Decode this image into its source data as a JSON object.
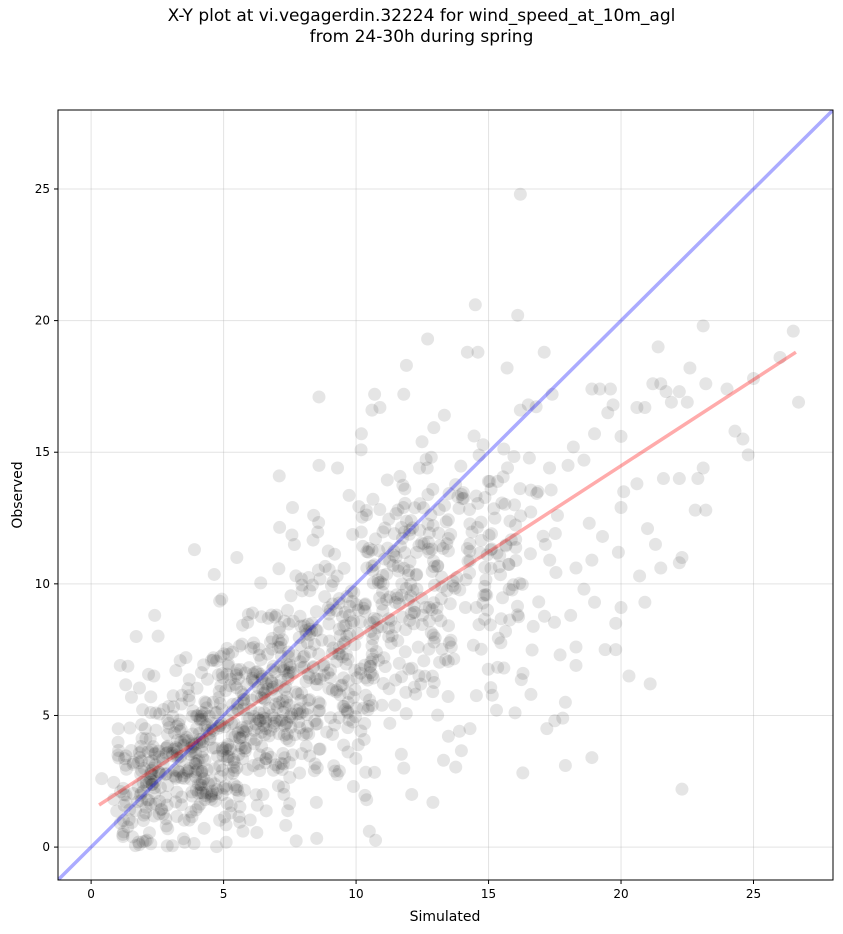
{
  "chart_data": {
    "type": "scatter",
    "title_line1": "X-Y plot at vi.vegagerdin.32224 for wind_speed_at_10m_agl",
    "title_line2": "from 24-30h during spring",
    "xlabel": "Simulated",
    "ylabel": "Observed",
    "xlim": [
      -1.25,
      28.0
    ],
    "ylim": [
      -1.25,
      28.0
    ],
    "xticks": [
      0,
      5,
      10,
      15,
      20,
      25
    ],
    "yticks": [
      0,
      5,
      10,
      15,
      20,
      25
    ],
    "grid": true,
    "point_color": "#000000",
    "identity_line_color": "#0000ff",
    "fit_line_color": "#ff0000",
    "fit_line": {
      "x": [
        0.3,
        26.6
      ],
      "y": [
        1.6,
        18.8
      ]
    },
    "outlier_points": [
      {
        "x": 0.4,
        "y": 2.6
      },
      {
        "x": 1.1,
        "y": 6.9
      },
      {
        "x": 1.7,
        "y": 8.0
      },
      {
        "x": 2.4,
        "y": 8.8
      },
      {
        "x": 3.9,
        "y": 11.3
      },
      {
        "x": 5.5,
        "y": 11.0
      },
      {
        "x": 7.1,
        "y": 14.1
      },
      {
        "x": 7.6,
        "y": 12.9
      },
      {
        "x": 8.4,
        "y": 12.6
      },
      {
        "x": 8.6,
        "y": 17.1
      },
      {
        "x": 8.6,
        "y": 14.5
      },
      {
        "x": 9.3,
        "y": 14.4
      },
      {
        "x": 10.2,
        "y": 15.7
      },
      {
        "x": 10.6,
        "y": 16.6
      },
      {
        "x": 10.9,
        "y": 16.7
      },
      {
        "x": 10.7,
        "y": 17.2
      },
      {
        "x": 11.8,
        "y": 17.2
      },
      {
        "x": 11.9,
        "y": 18.3
      },
      {
        "x": 12.7,
        "y": 19.3
      },
      {
        "x": 14.5,
        "y": 20.6
      },
      {
        "x": 14.2,
        "y": 18.8
      },
      {
        "x": 14.6,
        "y": 18.8
      },
      {
        "x": 15.7,
        "y": 18.2
      },
      {
        "x": 16.1,
        "y": 20.2
      },
      {
        "x": 16.2,
        "y": 24.8
      },
      {
        "x": 17.1,
        "y": 18.8
      },
      {
        "x": 17.4,
        "y": 17.2
      },
      {
        "x": 18.2,
        "y": 15.2
      },
      {
        "x": 18.6,
        "y": 14.7
      },
      {
        "x": 19.0,
        "y": 15.7
      },
      {
        "x": 19.5,
        "y": 16.5
      },
      {
        "x": 18.9,
        "y": 17.4
      },
      {
        "x": 19.2,
        "y": 17.4
      },
      {
        "x": 19.6,
        "y": 17.4
      },
      {
        "x": 19.7,
        "y": 16.8
      },
      {
        "x": 20.0,
        "y": 15.6
      },
      {
        "x": 20.6,
        "y": 16.7
      },
      {
        "x": 20.9,
        "y": 16.7
      },
      {
        "x": 21.2,
        "y": 17.6
      },
      {
        "x": 21.4,
        "y": 19.0
      },
      {
        "x": 21.5,
        "y": 17.6
      },
      {
        "x": 21.9,
        "y": 16.9
      },
      {
        "x": 21.7,
        "y": 17.3
      },
      {
        "x": 22.2,
        "y": 17.3
      },
      {
        "x": 22.5,
        "y": 16.9
      },
      {
        "x": 22.6,
        "y": 18.2
      },
      {
        "x": 23.1,
        "y": 19.8
      },
      {
        "x": 23.2,
        "y": 17.6
      },
      {
        "x": 24.0,
        "y": 17.4
      },
      {
        "x": 25.0,
        "y": 17.8
      },
      {
        "x": 26.0,
        "y": 18.6
      },
      {
        "x": 26.5,
        "y": 19.6
      },
      {
        "x": 26.7,
        "y": 16.9
      },
      {
        "x": 24.3,
        "y": 15.8
      },
      {
        "x": 24.6,
        "y": 15.5
      },
      {
        "x": 24.8,
        "y": 14.9
      },
      {
        "x": 23.1,
        "y": 14.4
      },
      {
        "x": 22.9,
        "y": 14.0
      },
      {
        "x": 23.2,
        "y": 12.8
      },
      {
        "x": 22.8,
        "y": 12.8
      },
      {
        "x": 22.2,
        "y": 14.0
      },
      {
        "x": 21.6,
        "y": 14.0
      },
      {
        "x": 22.3,
        "y": 11.0
      },
      {
        "x": 22.2,
        "y": 10.8
      },
      {
        "x": 21.3,
        "y": 11.5
      },
      {
        "x": 21.0,
        "y": 12.1
      },
      {
        "x": 21.5,
        "y": 10.6
      },
      {
        "x": 20.6,
        "y": 13.8
      },
      {
        "x": 20.1,
        "y": 13.5
      },
      {
        "x": 20.0,
        "y": 12.9
      },
      {
        "x": 19.9,
        "y": 11.2
      },
      {
        "x": 19.3,
        "y": 11.8
      },
      {
        "x": 19.8,
        "y": 8.5
      },
      {
        "x": 20.0,
        "y": 9.1
      },
      {
        "x": 19.4,
        "y": 7.5
      },
      {
        "x": 19.8,
        "y": 7.5
      },
      {
        "x": 20.3,
        "y": 6.5
      },
      {
        "x": 20.9,
        "y": 9.3
      },
      {
        "x": 20.7,
        "y": 10.3
      },
      {
        "x": 21.1,
        "y": 6.2
      },
      {
        "x": 22.3,
        "y": 2.2
      },
      {
        "x": 18.9,
        "y": 3.4
      },
      {
        "x": 17.9,
        "y": 3.1
      },
      {
        "x": 17.5,
        "y": 4.8
      },
      {
        "x": 17.8,
        "y": 4.9
      },
      {
        "x": 17.9,
        "y": 5.5
      },
      {
        "x": 18.3,
        "y": 6.9
      },
      {
        "x": 18.3,
        "y": 7.6
      },
      {
        "x": 18.1,
        "y": 8.8
      },
      {
        "x": 18.6,
        "y": 9.8
      },
      {
        "x": 19.0,
        "y": 9.3
      },
      {
        "x": 18.3,
        "y": 10.6
      },
      {
        "x": 18.9,
        "y": 10.9
      },
      {
        "x": 17.2,
        "y": 4.5
      },
      {
        "x": 16.0,
        "y": 5.1
      },
      {
        "x": 15.3,
        "y": 5.2
      },
      {
        "x": 16.3,
        "y": 6.6
      },
      {
        "x": 16.6,
        "y": 5.8
      },
      {
        "x": 17.7,
        "y": 7.3
      },
      {
        "x": 12.1,
        "y": 2.0
      },
      {
        "x": 12.9,
        "y": 1.7
      },
      {
        "x": 11.8,
        "y": 3.0
      },
      {
        "x": 10.5,
        "y": 0.6
      },
      {
        "x": 10.4,
        "y": 1.8
      },
      {
        "x": 9.9,
        "y": 2.3
      },
      {
        "x": 8.5,
        "y": 1.7
      },
      {
        "x": 13.3,
        "y": 3.3
      },
      {
        "x": 14.3,
        "y": 4.5
      },
      {
        "x": 13.9,
        "y": 4.4
      },
      {
        "x": 17.6,
        "y": 12.6
      },
      {
        "x": 18.8,
        "y": 12.3
      },
      {
        "x": 18.0,
        "y": 14.5
      },
      {
        "x": 17.3,
        "y": 14.4
      },
      {
        "x": 16.5,
        "y": 16.8
      },
      {
        "x": 16.2,
        "y": 16.6
      }
    ],
    "cloud_regions": [
      {
        "x": 1.8,
        "y": 2.0,
        "sx": 0.7,
        "sy": 1.2,
        "n": 60
      },
      {
        "x": 3.0,
        "y": 3.0,
        "sx": 1.0,
        "sy": 1.4,
        "n": 110
      },
      {
        "x": 4.2,
        "y": 3.6,
        "sx": 1.1,
        "sy": 1.6,
        "n": 140
      },
      {
        "x": 5.6,
        "y": 4.6,
        "sx": 1.2,
        "sy": 1.9,
        "n": 160
      },
      {
        "x": 7.2,
        "y": 6.0,
        "sx": 1.3,
        "sy": 2.2,
        "n": 160
      },
      {
        "x": 9.0,
        "y": 7.2,
        "sx": 1.3,
        "sy": 2.5,
        "n": 140
      },
      {
        "x": 10.8,
        "y": 9.2,
        "sx": 1.3,
        "sy": 2.6,
        "n": 130
      },
      {
        "x": 12.6,
        "y": 10.2,
        "sx": 1.2,
        "sy": 2.6,
        "n": 110
      },
      {
        "x": 14.4,
        "y": 10.8,
        "sx": 1.1,
        "sy": 2.4,
        "n": 80
      },
      {
        "x": 16.0,
        "y": 11.4,
        "sx": 0.9,
        "sy": 2.3,
        "n": 45
      }
    ]
  }
}
